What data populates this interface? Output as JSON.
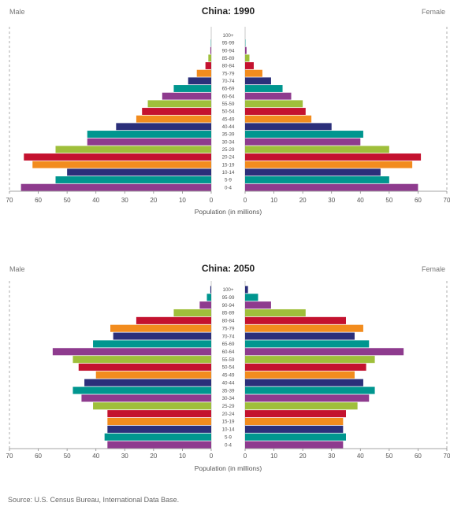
{
  "age_groups": [
    "0-4",
    "5-9",
    "10-14",
    "15-19",
    "20-24",
    "25-29",
    "30-34",
    "35-39",
    "40-44",
    "45-49",
    "50-54",
    "55-59",
    "60-64",
    "65-69",
    "70-74",
    "75-79",
    "80-84",
    "85-89",
    "90-94",
    "95-99",
    "100+"
  ],
  "colors": [
    "#8e3b8e",
    "#00968f",
    "#2b2f7a",
    "#f28c1e",
    "#c4122f",
    "#9fbf3b",
    "#8e3b8e",
    "#00968f",
    "#2b2f7a",
    "#f28c1e",
    "#c4122f",
    "#9fbf3b",
    "#8e3b8e",
    "#00968f",
    "#2b2f7a",
    "#f28c1e",
    "#c4122f",
    "#9fbf3b",
    "#8e3b8e",
    "#00968f",
    "#2b2f7a"
  ],
  "source": "Source: U.S. Census Bureau, International Data Base.",
  "chart_data": [
    {
      "type": "bar",
      "orientation": "horizontal",
      "title": "China: 1990",
      "left_label": "Male",
      "right_label": "Female",
      "xlabel": "Population (in millions)",
      "xlim": [
        0,
        70
      ],
      "ticks": [
        "70",
        "60",
        "50",
        "40",
        "30",
        "20",
        "10",
        "0",
        "0",
        "10",
        "20",
        "30",
        "40",
        "50",
        "60",
        "70"
      ],
      "categories": [
        "0-4",
        "5-9",
        "10-14",
        "15-19",
        "20-24",
        "25-29",
        "30-34",
        "35-39",
        "40-44",
        "45-49",
        "50-54",
        "55-59",
        "60-64",
        "65-69",
        "70-74",
        "75-79",
        "80-84",
        "85-89",
        "90-94",
        "95-99",
        "100+"
      ],
      "series": [
        {
          "name": "Male",
          "values": [
            66,
            54,
            50,
            62,
            65,
            54,
            43,
            43,
            33,
            26,
            24,
            22,
            17,
            13,
            8,
            5,
            2,
            1,
            0.3,
            0.1,
            0
          ]
        },
        {
          "name": "Female",
          "values": [
            60,
            50,
            47,
            58,
            61,
            50,
            40,
            41,
            30,
            23,
            21,
            20,
            16,
            13,
            9,
            6,
            3,
            1.5,
            0.5,
            0.1,
            0
          ]
        }
      ]
    },
    {
      "type": "bar",
      "orientation": "horizontal",
      "title": "China: 2050",
      "left_label": "Male",
      "right_label": "Female",
      "xlabel": "Population (in millions)",
      "xlim": [
        0,
        70
      ],
      "ticks": [
        "70",
        "60",
        "50",
        "40",
        "30",
        "20",
        "10",
        "0",
        "0",
        "10",
        "20",
        "30",
        "40",
        "50",
        "60",
        "70"
      ],
      "categories": [
        "0-4",
        "5-9",
        "10-14",
        "15-19",
        "20-24",
        "25-29",
        "30-34",
        "35-39",
        "40-44",
        "45-49",
        "50-54",
        "55-59",
        "60-64",
        "65-69",
        "70-74",
        "75-79",
        "80-84",
        "85-89",
        "90-94",
        "95-99",
        "100+"
      ],
      "series": [
        {
          "name": "Male",
          "values": [
            36,
            37,
            36,
            36,
            36,
            41,
            45,
            48,
            44,
            40,
            46,
            48,
            55,
            41,
            34,
            35,
            26,
            13,
            4,
            1.5,
            0.3
          ]
        },
        {
          "name": "Female",
          "values": [
            34,
            35,
            34,
            34,
            35,
            39,
            43,
            45,
            41,
            38,
            42,
            45,
            55,
            43,
            38,
            41,
            35,
            21,
            9,
            4.5,
            1
          ]
        }
      ]
    }
  ]
}
